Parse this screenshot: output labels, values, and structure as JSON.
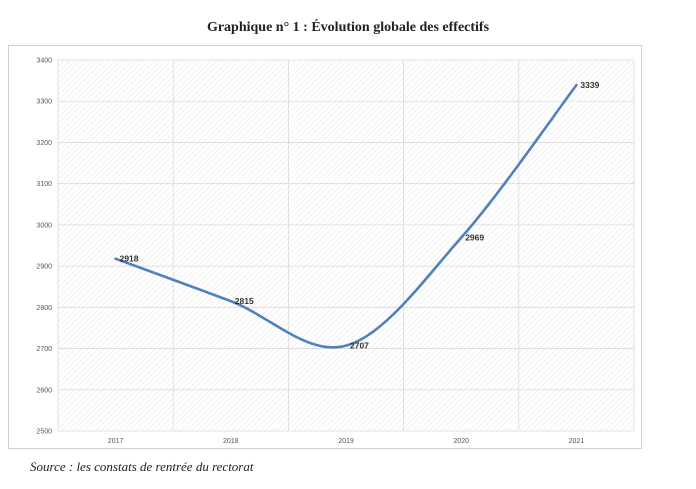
{
  "title": "Graphique n° 1 : Évolution globale des effectifs",
  "source": "Source : les constats de rentrée du rectorat",
  "chart_data": {
    "type": "line",
    "categories": [
      "2017",
      "2018",
      "2019",
      "2020",
      "2021"
    ],
    "series": [
      {
        "values": [
          2918,
          2815,
          2707,
          2969,
          3339
        ]
      }
    ],
    "data_labels": [
      "2918",
      "2815",
      "2707",
      "2969",
      "3339"
    ],
    "ylim": [
      2500,
      3400
    ],
    "yticks": [
      "2500",
      "2600",
      "2700",
      "2800",
      "2900",
      "3000",
      "3100",
      "3200",
      "3300",
      "3400"
    ],
    "smooth": true,
    "grid": true,
    "line_color": "#4f81bd",
    "title": "Graphique n° 1 : Évolution globale des effectifs",
    "xlabel": "",
    "ylabel": ""
  }
}
